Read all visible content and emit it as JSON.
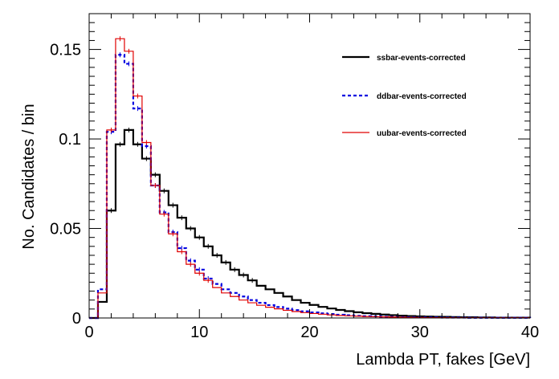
{
  "chart_data": {
    "type": "line",
    "title": "",
    "xlabel": "Lambda PT, fakes [GeV]",
    "ylabel": "No. Candidates / bin",
    "xlim": [
      0,
      40
    ],
    "ylim": [
      0,
      0.17
    ],
    "x_ticks": [
      0,
      10,
      20,
      30,
      40
    ],
    "x_tick_labels": [
      "0",
      "10",
      "20",
      "30",
      "40"
    ],
    "y_ticks": [
      0,
      0.05,
      0.1,
      0.15
    ],
    "y_tick_labels": [
      "0",
      "0.05",
      "0.1",
      "0.15"
    ],
    "grid": false,
    "legend_position": "top-right",
    "bin_edges": [
      0,
      0.8,
      1.6,
      2.4,
      3.2,
      4.0,
      4.8,
      5.6,
      6.4,
      7.2,
      8.0,
      8.8,
      9.6,
      10.4,
      11.2,
      12.0,
      12.8,
      13.6,
      14.4,
      15.2,
      16.0,
      16.8,
      17.6,
      18.4,
      19.2,
      20.0,
      20.8,
      21.6,
      22.4,
      23.2,
      24.0,
      24.8,
      25.6,
      26.4,
      27.2,
      28.0,
      28.8,
      29.6,
      30.4,
      31.2,
      32.0,
      32.8,
      33.6,
      34.4,
      35.2,
      36.0,
      36.8,
      37.6,
      38.4,
      39.2,
      40.0
    ],
    "series": [
      {
        "name": "ssbar-events-corrected",
        "color": "#000000",
        "style": "solid",
        "width": 2.2,
        "values": [
          0,
          0.009,
          0.06,
          0.097,
          0.105,
          0.097,
          0.089,
          0.08,
          0.071,
          0.063,
          0.056,
          0.05,
          0.045,
          0.04,
          0.035,
          0.031,
          0.027,
          0.024,
          0.021,
          0.018,
          0.016,
          0.014,
          0.012,
          0.01,
          0.0085,
          0.0073,
          0.0062,
          0.0053,
          0.0045,
          0.0038,
          0.0032,
          0.0027,
          0.0023,
          0.0019,
          0.0016,
          0.0013,
          0.0011,
          0.0009,
          0.0008,
          0.0007,
          0.0006,
          0.0005,
          0.0004,
          0.0004,
          0.0003,
          0.0003,
          0.0002,
          0.0002,
          0.0002,
          0.0002
        ]
      },
      {
        "name": "ddbar-events-corrected",
        "color": "#0000e0",
        "style": "dashed",
        "width": 2.2,
        "values": [
          0,
          0.016,
          0.104,
          0.147,
          0.142,
          0.117,
          0.096,
          0.074,
          0.059,
          0.048,
          0.039,
          0.032,
          0.027,
          0.022,
          0.019,
          0.016,
          0.014,
          0.012,
          0.01,
          0.0085,
          0.0072,
          0.0061,
          0.0052,
          0.0044,
          0.0037,
          0.0031,
          0.0026,
          0.0022,
          0.0018,
          0.0015,
          0.0012,
          0.001,
          0.0009,
          0.0007,
          0.0006,
          0.0005,
          0.0004,
          0.0004,
          0.0003,
          0.0003,
          0.0002,
          0.0002,
          0.0002,
          0.0001,
          0.0001,
          0.0001,
          0.0001,
          0.0001,
          0.0001,
          0.0001
        ]
      },
      {
        "name": "uubar-events-corrected",
        "color": "#e00000",
        "style": "solid",
        "width": 1.2,
        "values": [
          0,
          0.014,
          0.105,
          0.156,
          0.149,
          0.124,
          0.098,
          0.074,
          0.058,
          0.047,
          0.037,
          0.03,
          0.025,
          0.021,
          0.017,
          0.014,
          0.012,
          0.01,
          0.0085,
          0.0071,
          0.006,
          0.0051,
          0.0043,
          0.0036,
          0.003,
          0.0025,
          0.0021,
          0.0017,
          0.0014,
          0.0012,
          0.001,
          0.0008,
          0.0007,
          0.0006,
          0.0005,
          0.0004,
          0.0003,
          0.0003,
          0.0002,
          0.0002,
          0.0002,
          0.0001,
          0.0001,
          0.0001,
          0.0001,
          0.0001,
          0.0001,
          0.0001,
          0.0001,
          0.0001
        ]
      }
    ]
  }
}
